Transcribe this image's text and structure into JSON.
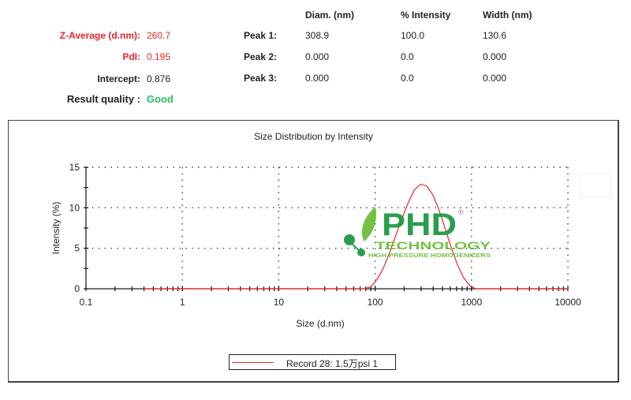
{
  "summary": {
    "z_average": {
      "label": "Z-Average (d.nm):",
      "value": "260.7"
    },
    "pdi": {
      "label": "PdI:",
      "value": "0.195"
    },
    "intercept": {
      "label": "Intercept:",
      "value": "0.876"
    },
    "result_quality": {
      "label": "Result quality :",
      "value": "Good"
    }
  },
  "peaks": {
    "headers": [
      "Diam. (nm)",
      "% Intensity",
      "Width (nm)"
    ],
    "rows": [
      {
        "label": "Peak 1:",
        "diam": "308.9",
        "intensity": "100.0",
        "width": "130.6"
      },
      {
        "label": "Peak 2:",
        "diam": "0.000",
        "intensity": "0.0",
        "width": "0.000"
      },
      {
        "label": "Peak 3:",
        "diam": "0.000",
        "intensity": "0.0",
        "width": "0.000"
      }
    ]
  },
  "colors": {
    "accent_red": "#e8262b",
    "good_green": "#27c15b",
    "logo_dark_green": "#1e9a45",
    "logo_light_green": "#6cbf3a"
  },
  "watermark": {
    "brand": "PHD",
    "registered": "®",
    "subtitle": "TECHNOLOGY",
    "tagline": "HIGH PRESSURE HOMOGENIZERS"
  },
  "chart_data": {
    "type": "line",
    "title": "Size Distribution by Intensity",
    "xlabel": "Size (d.nm)",
    "ylabel": "Intensity (%)",
    "xscale": "log",
    "xlim": [
      0.1,
      10000
    ],
    "ylim": [
      0,
      15
    ],
    "xticks": [
      "0.1",
      "1",
      "10",
      "100",
      "1000",
      "10000"
    ],
    "yticks": [
      "0",
      "5",
      "10",
      "15"
    ],
    "grid": true,
    "legend_position": "bottom-center",
    "series": [
      {
        "name": "Record 28: 1.5万psi 1",
        "color": "#e8262b",
        "x": [
          0.4,
          78.8,
          91.3,
          105.7,
          122.4,
          141.8,
          164.2,
          190.1,
          220.2,
          255.0,
          295.3,
          342.0,
          396.1,
          458.7,
          531.2,
          615.1,
          712.4,
          825.0,
          955.4,
          1106.0,
          10000
        ],
        "values": [
          0,
          0,
          0.3,
          1.2,
          2.6,
          4.5,
          6.6,
          8.7,
          10.6,
          12.2,
          12.9,
          12.7,
          11.6,
          9.8,
          7.5,
          5.1,
          3.0,
          1.4,
          0.4,
          0,
          0
        ]
      }
    ]
  }
}
